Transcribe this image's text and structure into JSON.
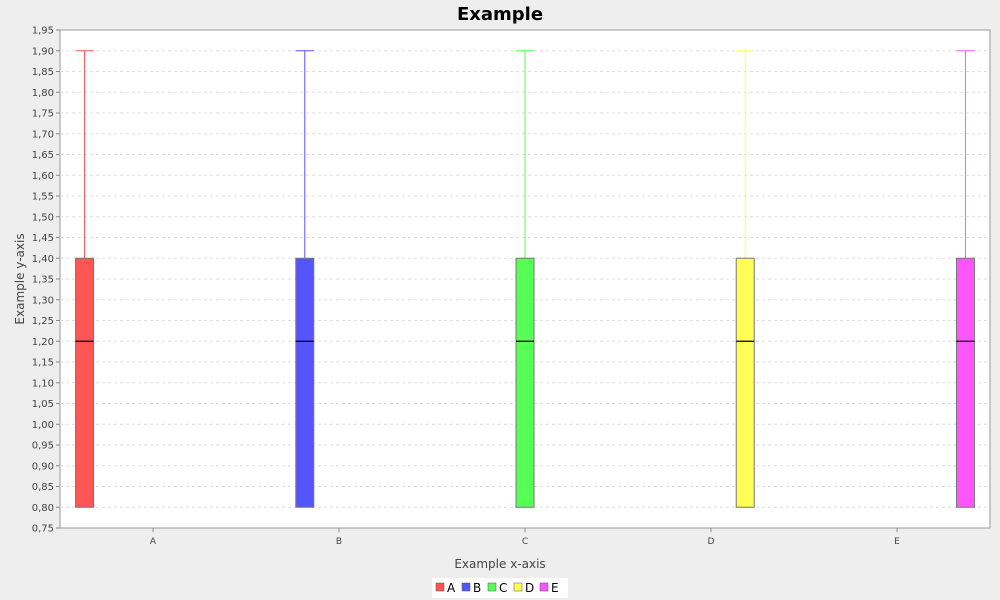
{
  "chart_data": {
    "type": "box",
    "title": "Example",
    "xlabel": "Example x-axis",
    "ylabel": "Example y-axis",
    "ylim": [
      0.75,
      1.95
    ],
    "y_ticks": [
      "0,75",
      "0,80",
      "0,85",
      "0,90",
      "0,95",
      "1,00",
      "1,05",
      "1,10",
      "1,15",
      "1,20",
      "1,25",
      "1,30",
      "1,35",
      "1,40",
      "1,45",
      "1,50",
      "1,55",
      "1,60",
      "1,65",
      "1,70",
      "1,75",
      "1,80",
      "1,85",
      "1,90",
      "1,95"
    ],
    "categories": [
      "A",
      "B",
      "C",
      "D",
      "E"
    ],
    "grid": true,
    "legend_position": "bottom",
    "series": [
      {
        "name": "A",
        "color": "#ff5555",
        "whisker_low": 0.8,
        "q1": 0.8,
        "median": 1.2,
        "q3": 1.4,
        "whisker_high": 1.9
      },
      {
        "name": "B",
        "color": "#5555ff",
        "whisker_low": 0.8,
        "q1": 0.8,
        "median": 1.2,
        "q3": 1.4,
        "whisker_high": 1.9
      },
      {
        "name": "C",
        "color": "#55ff55",
        "whisker_low": 0.8,
        "q1": 0.8,
        "median": 1.2,
        "q3": 1.4,
        "whisker_high": 1.9
      },
      {
        "name": "D",
        "color": "#ffff55",
        "whisker_low": 0.8,
        "q1": 0.8,
        "median": 1.2,
        "q3": 1.4,
        "whisker_high": 1.9
      },
      {
        "name": "E",
        "color": "#ff55ff",
        "whisker_low": 0.8,
        "q1": 0.8,
        "median": 1.2,
        "q3": 1.4,
        "whisker_high": 1.9
      }
    ]
  }
}
